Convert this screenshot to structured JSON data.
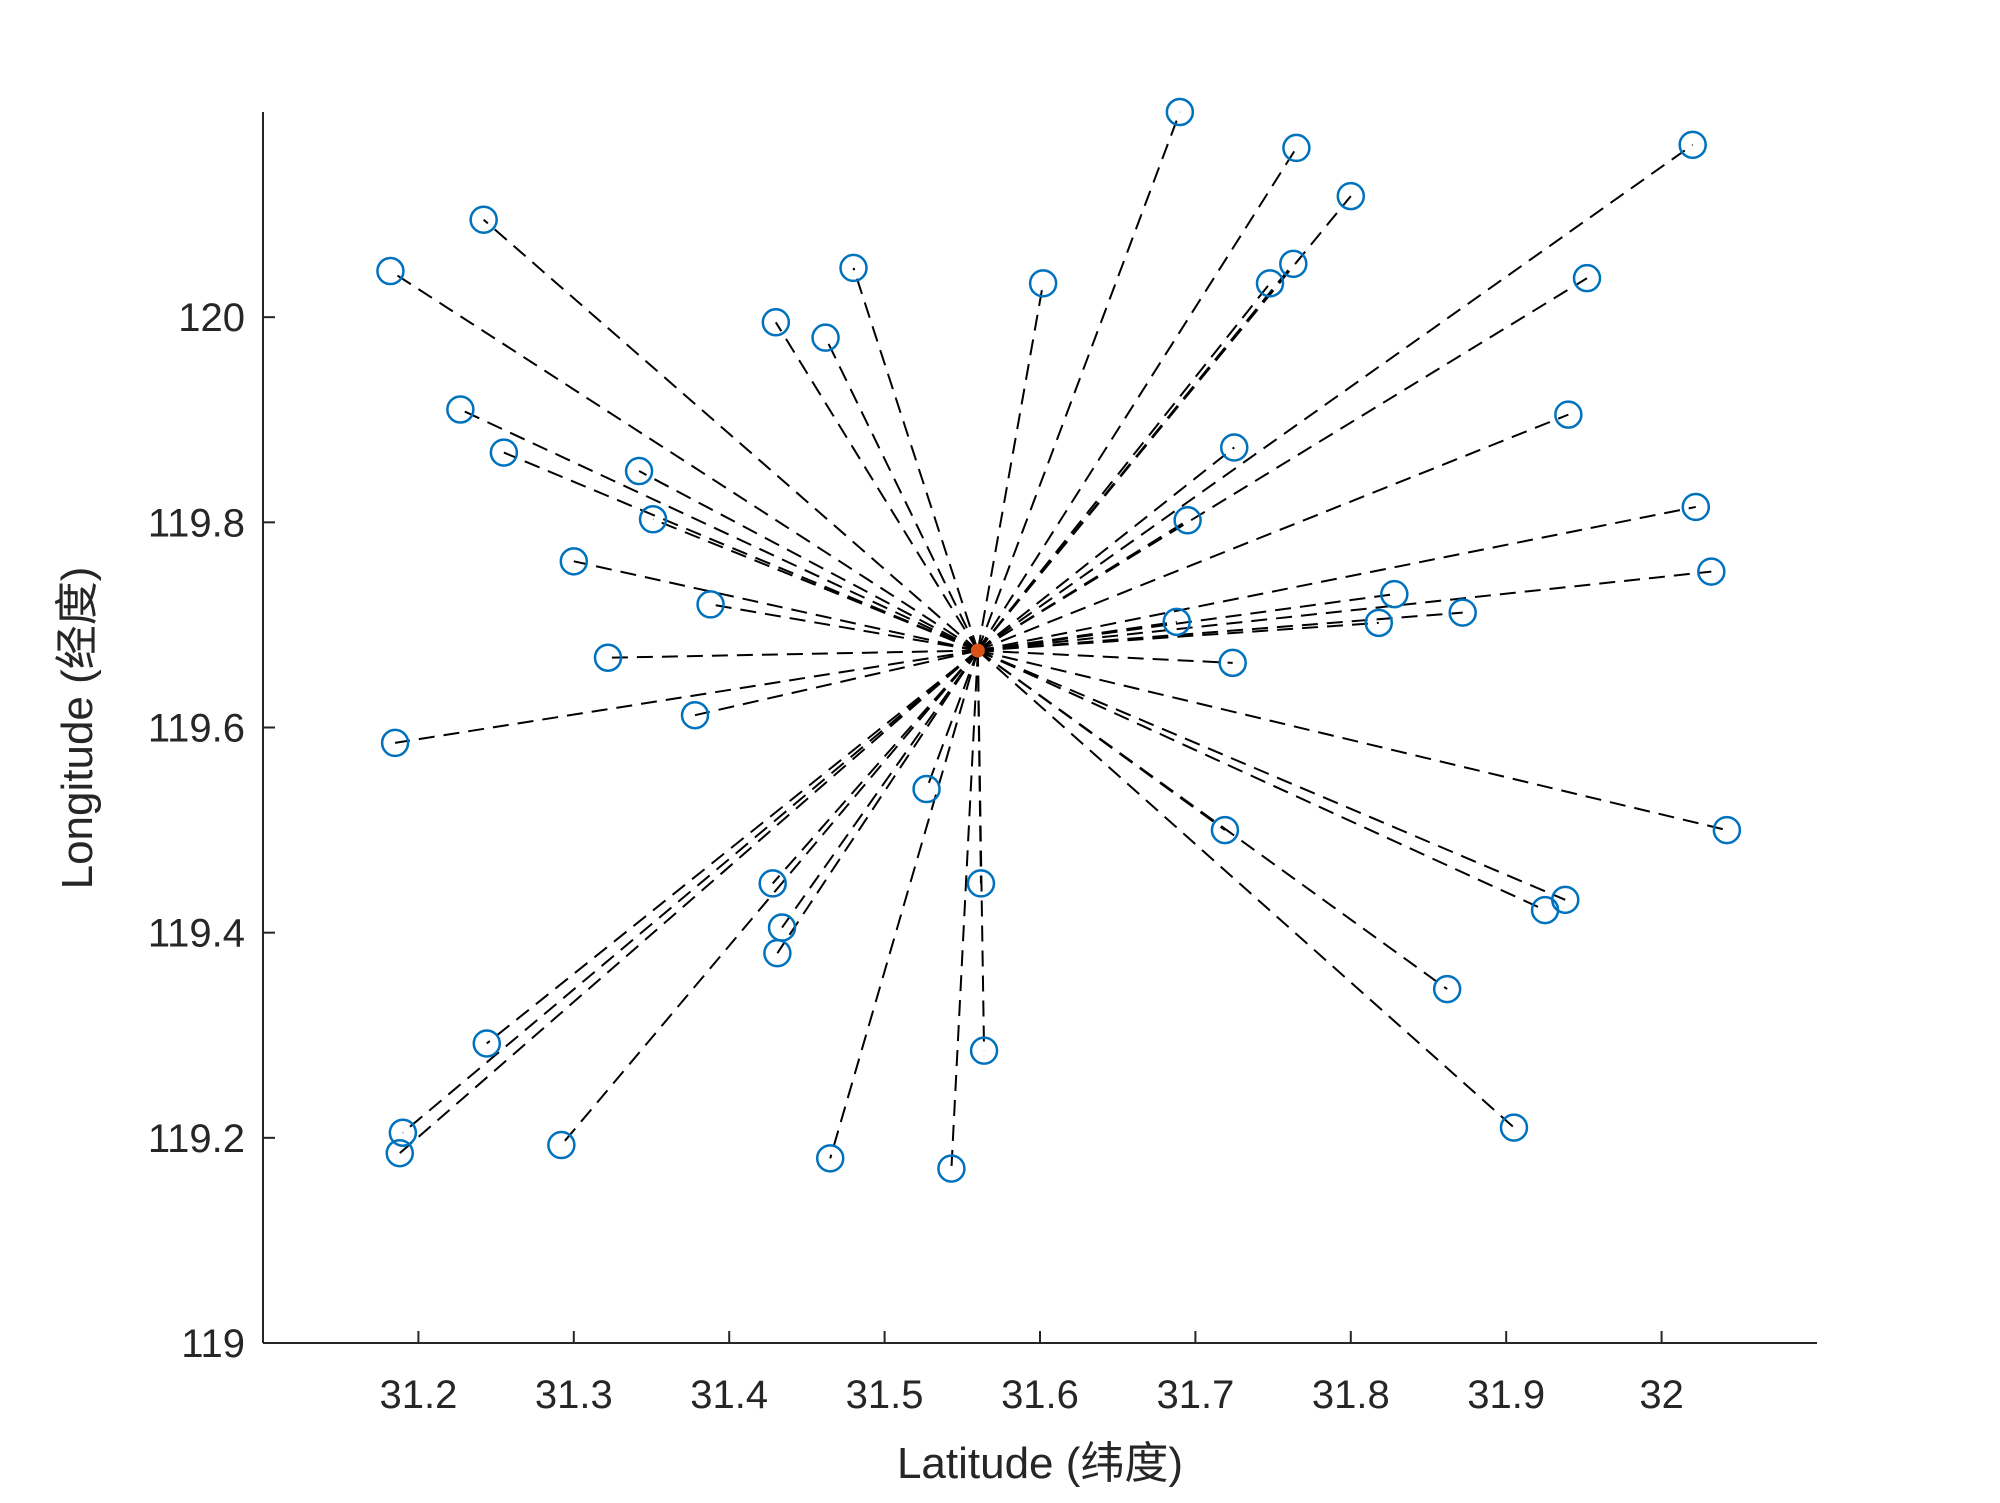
{
  "chart_data": {
    "type": "scatter",
    "title": "",
    "xlabel": "Latitude (纬度)",
    "ylabel": "Longitude (经度)",
    "xlim": [
      31.1,
      32.1
    ],
    "ylim": [
      119.0,
      120.2
    ],
    "xticks": [
      31.2,
      31.3,
      31.4,
      31.5,
      31.6,
      31.7,
      31.8,
      31.9,
      32.0
    ],
    "xtick_labels": [
      "31.2",
      "31.3",
      "31.4",
      "31.5",
      "31.6",
      "31.7",
      "31.8",
      "31.9",
      "32"
    ],
    "yticks": [
      119.0,
      119.2,
      119.4,
      119.6,
      119.8,
      120.0
    ],
    "ytick_labels": [
      "119",
      "119.2",
      "119.4",
      "119.6",
      "119.8",
      "120"
    ],
    "grid": false,
    "colors": {
      "points": "#0072BD",
      "center": "#D95319",
      "lines": "#000000",
      "axes": "#262626"
    },
    "center": {
      "x": 31.56,
      "y": 119.675
    },
    "series": [
      {
        "x": [
          31.69,
          31.765,
          31.8,
          32.02,
          31.763,
          31.748,
          31.952,
          31.94,
          31.725,
          31.695,
          32.022,
          32.032,
          31.828,
          31.872,
          31.818,
          31.688,
          31.724,
          32.042,
          31.719,
          31.938,
          31.925,
          31.862,
          31.905,
          31.602,
          31.48,
          31.462,
          31.43,
          31.242,
          31.182,
          31.227,
          31.255,
          31.342,
          31.351,
          31.3,
          31.388,
          31.322,
          31.378,
          31.185,
          31.527,
          31.428,
          31.434,
          31.431,
          31.562,
          31.564,
          31.244,
          31.19,
          31.188,
          31.292,
          31.465,
          31.543
        ],
        "y": [
          120.2,
          120.165,
          120.118,
          120.168,
          120.052,
          120.033,
          120.038,
          119.905,
          119.873,
          119.802,
          119.815,
          119.752,
          119.73,
          119.712,
          119.702,
          119.703,
          119.663,
          119.5,
          119.5,
          119.432,
          119.422,
          119.345,
          119.21,
          120.033,
          120.048,
          119.98,
          119.995,
          120.095,
          120.045,
          119.91,
          119.868,
          119.85,
          119.803,
          119.762,
          119.72,
          119.668,
          119.612,
          119.585,
          119.54,
          119.448,
          119.405,
          119.38,
          119.448,
          119.285,
          119.292,
          119.205,
          119.185,
          119.193,
          119.18,
          119.17
        ]
      }
    ]
  }
}
